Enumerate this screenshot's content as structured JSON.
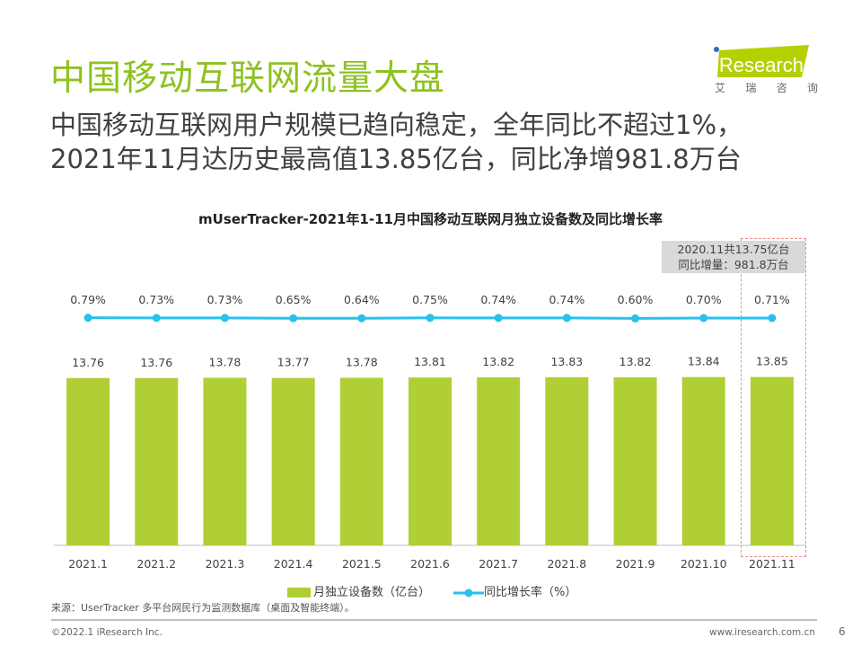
{
  "header": {
    "title": "中国移动互联网流量大盘",
    "subtitle_line1": "中国移动互联网用户规模已趋向稳定，全年同比不超过1%，",
    "subtitle_line2": "2021年11月达历史最高值13.85亿台，同比净增981.8万台",
    "logo_text": "iResearch",
    "logo_cn": [
      "艾",
      "瑞",
      "咨",
      "询"
    ]
  },
  "annotation": {
    "line1": "2020.11共13.75亿台",
    "line2": "同比增量：981.8万台"
  },
  "chart_data": {
    "type": "bar+line",
    "title": "mUserTracker-2021年1-11月中国移动互联网月独立设备数及同比增长率",
    "categories": [
      "2021.1",
      "2021.2",
      "2021.3",
      "2021.4",
      "2021.5",
      "2021.6",
      "2021.7",
      "2021.8",
      "2021.9",
      "2021.10",
      "2021.11"
    ],
    "series": [
      {
        "name": "月独立设备数（亿台）",
        "type": "bar",
        "color": "#b0cf36",
        "values": [
          13.76,
          13.76,
          13.78,
          13.77,
          13.78,
          13.81,
          13.82,
          13.83,
          13.82,
          13.84,
          13.85
        ],
        "labels": [
          "13.76",
          "13.76",
          "13.78",
          "13.77",
          "13.78",
          "13.81",
          "13.82",
          "13.83",
          "13.82",
          "13.84",
          "13.85"
        ]
      },
      {
        "name": "同比增长率（%）",
        "type": "line",
        "color": "#29c0ec",
        "values": [
          0.79,
          0.73,
          0.73,
          0.65,
          0.64,
          0.75,
          0.74,
          0.74,
          0.6,
          0.7,
          0.71
        ],
        "labels": [
          "0.79%",
          "0.73%",
          "0.73%",
          "0.65%",
          "0.64%",
          "0.75%",
          "0.74%",
          "0.74%",
          "0.60%",
          "0.70%",
          "0.71%"
        ]
      }
    ],
    "ylim": [
      0,
      15
    ],
    "highlight_category": "2021.11",
    "legend_position": "bottom",
    "grid": false
  },
  "legend": {
    "bar": "月独立设备数（亿台）",
    "line": "同比增长率（%）"
  },
  "footer": {
    "source": "来源：UserTracker 多平台网民行为监测数据库（桌面及智能终端）。",
    "copyright": "©2022.1 iResearch Inc.",
    "url": "www.iresearch.com.cn",
    "page": "6"
  }
}
